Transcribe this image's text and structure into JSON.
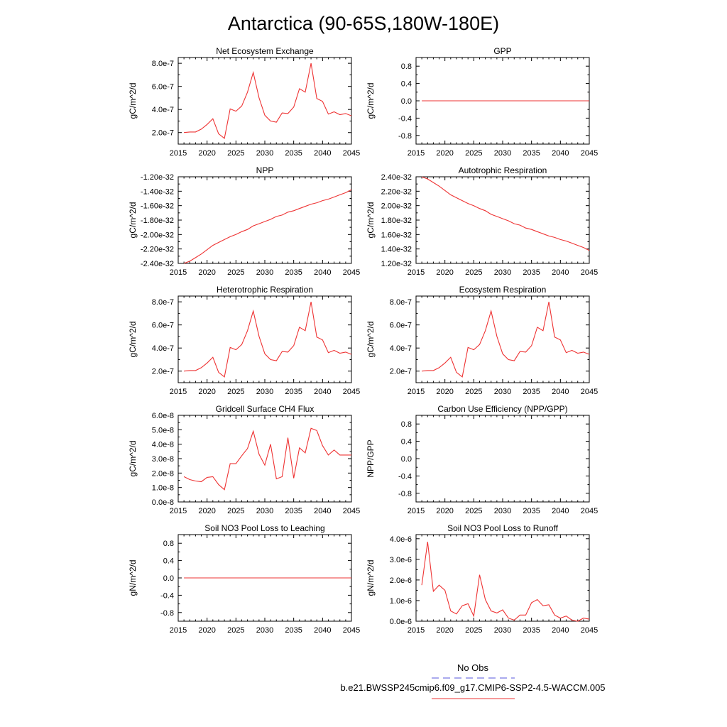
{
  "figure": {
    "title": "Antarctica (90-65S,180W-180E)",
    "legend": {
      "obs_label": "No Obs",
      "obs_color": "#5555dd",
      "model_label": "b.e21.BWSSP245cmip6.f09_g17.CMIP6-SSP2-4.5-WACCM.005",
      "model_color": "#ee3333"
    }
  },
  "chart_data": [
    {
      "type": "line",
      "title": "Net Ecosystem Exchange",
      "ylabel": "gC/m^2/d",
      "xlim": [
        2015,
        2045
      ],
      "ylim": [
        1e-07,
        8.5e-07
      ],
      "xticks": [
        2015,
        2020,
        2025,
        2030,
        2035,
        2040,
        2045
      ],
      "xtick_labels": [
        "2015",
        "2020",
        "2025",
        "2030",
        "2035",
        "2040",
        "2045"
      ],
      "yticks": [
        2e-07,
        4e-07,
        6e-07,
        8e-07
      ],
      "ytick_labels": [
        "2.0e-7",
        "4.0e-7",
        "6.0e-7",
        "8.0e-7"
      ],
      "x": [
        2016,
        2017,
        2018,
        2019,
        2020,
        2021,
        2022,
        2023,
        2024,
        2025,
        2026,
        2027,
        2028,
        2029,
        2030,
        2031,
        2032,
        2033,
        2034,
        2035,
        2036,
        2037,
        2038,
        2039,
        2040,
        2041,
        2042,
        2043,
        2044,
        2045
      ],
      "values": [
        2e-07,
        2.05e-07,
        2.05e-07,
        2.3e-07,
        2.7e-07,
        3.2e-07,
        1.9e-07,
        1.5e-07,
        4.05e-07,
        3.85e-07,
        4.3e-07,
        5.5e-07,
        7.2e-07,
        5e-07,
        3.5e-07,
        3e-07,
        2.9e-07,
        3.7e-07,
        3.65e-07,
        4.2e-07,
        5.8e-07,
        5.5e-07,
        8e-07,
        4.95e-07,
        4.7e-07,
        3.6e-07,
        3.8e-07,
        3.55e-07,
        3.65e-07,
        3.45e-07
      ]
    },
    {
      "type": "line",
      "title": "GPP",
      "ylabel": "gC/m^2/d",
      "xlim": [
        2015,
        2045
      ],
      "ylim": [
        -1.0,
        1.0
      ],
      "xticks": [
        2015,
        2020,
        2025,
        2030,
        2035,
        2040,
        2045
      ],
      "xtick_labels": [
        "2015",
        "2020",
        "2025",
        "2030",
        "2035",
        "2040",
        "2045"
      ],
      "yticks": [
        -0.8,
        -0.4,
        0.0,
        0.4,
        0.8
      ],
      "ytick_labels": [
        "-0.8",
        "-0.4",
        "0.0",
        "0.4",
        "0.8"
      ],
      "x": [
        2016,
        2045
      ],
      "values": [
        0.0,
        0.0
      ]
    },
    {
      "type": "line",
      "title": "NPP",
      "ylabel": "gC/m^2/d",
      "xlim": [
        2015,
        2045
      ],
      "ylim": [
        -2.4e-32,
        -1.2e-32
      ],
      "xticks": [
        2015,
        2020,
        2025,
        2030,
        2035,
        2040,
        2045
      ],
      "xtick_labels": [
        "2015",
        "2020",
        "2025",
        "2030",
        "2035",
        "2040",
        "2045"
      ],
      "yticks": [
        -2.4e-32,
        -2.2e-32,
        -2e-32,
        -1.8e-32,
        -1.6e-32,
        -1.4e-32,
        -1.2e-32
      ],
      "ytick_labels": [
        "-2.40e-32",
        "-2.20e-32",
        "-2.00e-32",
        "-1.80e-32",
        "-1.60e-32",
        "-1.40e-32",
        "-1.20e-32"
      ],
      "x": [
        2016,
        2017,
        2018,
        2019,
        2020,
        2021,
        2022,
        2023,
        2024,
        2025,
        2026,
        2027,
        2028,
        2029,
        2030,
        2031,
        2032,
        2033,
        2034,
        2035,
        2036,
        2037,
        2038,
        2039,
        2040,
        2041,
        2042,
        2043,
        2044,
        2045
      ],
      "values": [
        -2.4e-32,
        -2.37e-32,
        -2.32e-32,
        -2.27e-32,
        -2.21e-32,
        -2.15e-32,
        -2.11e-32,
        -2.07e-32,
        -2.03e-32,
        -2e-32,
        -1.96e-32,
        -1.93e-32,
        -1.88e-32,
        -1.85e-32,
        -1.82e-32,
        -1.79e-32,
        -1.75e-32,
        -1.73e-32,
        -1.69e-32,
        -1.67e-32,
        -1.64e-32,
        -1.61e-32,
        -1.58e-32,
        -1.56e-32,
        -1.53e-32,
        -1.51e-32,
        -1.48e-32,
        -1.45e-32,
        -1.42e-32,
        -1.38e-32
      ]
    },
    {
      "type": "line",
      "title": "Autotrophic Respiration",
      "ylabel": "gC/m^2/d",
      "xlim": [
        2015,
        2045
      ],
      "ylim": [
        1.2e-32,
        2.4e-32
      ],
      "xticks": [
        2015,
        2020,
        2025,
        2030,
        2035,
        2040,
        2045
      ],
      "xtick_labels": [
        "2015",
        "2020",
        "2025",
        "2030",
        "2035",
        "2040",
        "2045"
      ],
      "yticks": [
        1.2e-32,
        1.4e-32,
        1.6e-32,
        1.8e-32,
        2e-32,
        2.2e-32,
        2.4e-32
      ],
      "ytick_labels": [
        "1.20e-32",
        "1.40e-32",
        "1.60e-32",
        "1.80e-32",
        "2.00e-32",
        "2.20e-32",
        "2.40e-32"
      ],
      "x": [
        2016,
        2017,
        2018,
        2019,
        2020,
        2021,
        2022,
        2023,
        2024,
        2025,
        2026,
        2027,
        2028,
        2029,
        2030,
        2031,
        2032,
        2033,
        2034,
        2035,
        2036,
        2037,
        2038,
        2039,
        2040,
        2041,
        2042,
        2043,
        2044,
        2045
      ],
      "values": [
        2.4e-32,
        2.37e-32,
        2.32e-32,
        2.27e-32,
        2.21e-32,
        2.15e-32,
        2.11e-32,
        2.07e-32,
        2.03e-32,
        2e-32,
        1.96e-32,
        1.93e-32,
        1.88e-32,
        1.85e-32,
        1.82e-32,
        1.79e-32,
        1.75e-32,
        1.73e-32,
        1.69e-32,
        1.67e-32,
        1.64e-32,
        1.61e-32,
        1.58e-32,
        1.56e-32,
        1.53e-32,
        1.51e-32,
        1.48e-32,
        1.45e-32,
        1.42e-32,
        1.38e-32
      ]
    },
    {
      "type": "line",
      "title": "Heterotrophic Respiration",
      "ylabel": "gC/m^2/d",
      "xlim": [
        2015,
        2045
      ],
      "ylim": [
        1e-07,
        8.5e-07
      ],
      "xticks": [
        2015,
        2020,
        2025,
        2030,
        2035,
        2040,
        2045
      ],
      "xtick_labels": [
        "2015",
        "2020",
        "2025",
        "2030",
        "2035",
        "2040",
        "2045"
      ],
      "yticks": [
        2e-07,
        4e-07,
        6e-07,
        8e-07
      ],
      "ytick_labels": [
        "2.0e-7",
        "4.0e-7",
        "6.0e-7",
        "8.0e-7"
      ],
      "x": [
        2016,
        2017,
        2018,
        2019,
        2020,
        2021,
        2022,
        2023,
        2024,
        2025,
        2026,
        2027,
        2028,
        2029,
        2030,
        2031,
        2032,
        2033,
        2034,
        2035,
        2036,
        2037,
        2038,
        2039,
        2040,
        2041,
        2042,
        2043,
        2044,
        2045
      ],
      "values": [
        2e-07,
        2.05e-07,
        2.05e-07,
        2.3e-07,
        2.7e-07,
        3.2e-07,
        1.9e-07,
        1.5e-07,
        4.05e-07,
        3.85e-07,
        4.3e-07,
        5.5e-07,
        7.2e-07,
        5e-07,
        3.5e-07,
        3e-07,
        2.9e-07,
        3.7e-07,
        3.65e-07,
        4.2e-07,
        5.8e-07,
        5.5e-07,
        8e-07,
        4.95e-07,
        4.7e-07,
        3.6e-07,
        3.8e-07,
        3.55e-07,
        3.65e-07,
        3.45e-07
      ]
    },
    {
      "type": "line",
      "title": "Ecosystem Respiration",
      "ylabel": "gC/m^2/d",
      "xlim": [
        2015,
        2045
      ],
      "ylim": [
        1e-07,
        8.5e-07
      ],
      "xticks": [
        2015,
        2020,
        2025,
        2030,
        2035,
        2040,
        2045
      ],
      "xtick_labels": [
        "2015",
        "2020",
        "2025",
        "2030",
        "2035",
        "2040",
        "2045"
      ],
      "yticks": [
        2e-07,
        4e-07,
        6e-07,
        8e-07
      ],
      "ytick_labels": [
        "2.0e-7",
        "4.0e-7",
        "6.0e-7",
        "8.0e-7"
      ],
      "x": [
        2016,
        2017,
        2018,
        2019,
        2020,
        2021,
        2022,
        2023,
        2024,
        2025,
        2026,
        2027,
        2028,
        2029,
        2030,
        2031,
        2032,
        2033,
        2034,
        2035,
        2036,
        2037,
        2038,
        2039,
        2040,
        2041,
        2042,
        2043,
        2044,
        2045
      ],
      "values": [
        2e-07,
        2.05e-07,
        2.05e-07,
        2.3e-07,
        2.7e-07,
        3.2e-07,
        1.9e-07,
        1.5e-07,
        4.05e-07,
        3.85e-07,
        4.3e-07,
        5.5e-07,
        7.2e-07,
        5e-07,
        3.5e-07,
        3e-07,
        2.9e-07,
        3.7e-07,
        3.65e-07,
        4.2e-07,
        5.8e-07,
        5.5e-07,
        8e-07,
        4.95e-07,
        4.7e-07,
        3.6e-07,
        3.8e-07,
        3.55e-07,
        3.65e-07,
        3.45e-07
      ]
    },
    {
      "type": "line",
      "title": "Gridcell Surface CH4 Flux",
      "ylabel": "gC/m^2/d",
      "xlim": [
        2015,
        2045
      ],
      "ylim": [
        0.0,
        6e-08
      ],
      "xticks": [
        2015,
        2020,
        2025,
        2030,
        2035,
        2040,
        2045
      ],
      "xtick_labels": [
        "2015",
        "2020",
        "2025",
        "2030",
        "2035",
        "2040",
        "2045"
      ],
      "yticks": [
        0.0,
        1e-08,
        2e-08,
        3e-08,
        4e-08,
        5e-08,
        6e-08
      ],
      "ytick_labels": [
        "0.0e-8",
        "1.0e-8",
        "2.0e-8",
        "3.0e-8",
        "4.0e-8",
        "5.0e-8",
        "6.0e-8"
      ],
      "x": [
        2016,
        2017,
        2018,
        2019,
        2020,
        2021,
        2022,
        2023,
        2024,
        2025,
        2026,
        2027,
        2028,
        2029,
        2030,
        2031,
        2032,
        2033,
        2034,
        2035,
        2036,
        2037,
        2038,
        2039,
        2040,
        2041,
        2042,
        2043,
        2044,
        2045
      ],
      "values": [
        1.75e-08,
        1.55e-08,
        1.45e-08,
        1.4e-08,
        1.7e-08,
        1.75e-08,
        1.2e-08,
        8.5e-09,
        2.65e-08,
        2.65e-08,
        3.2e-08,
        3.7e-08,
        4.9e-08,
        3.3e-08,
        2.55e-08,
        4e-08,
        1.6e-08,
        1.75e-08,
        4.45e-08,
        1.65e-08,
        3.75e-08,
        3.4e-08,
        5.1e-08,
        4.95e-08,
        3.9e-08,
        3.25e-08,
        3.6e-08,
        3.25e-08,
        3.25e-08,
        3.25e-08
      ]
    },
    {
      "type": "line",
      "title": "Carbon Use Efficiency (NPP/GPP)",
      "ylabel": "NPP/GPP",
      "xlim": [
        2015,
        2045
      ],
      "ylim": [
        -1.0,
        1.0
      ],
      "xticks": [
        2015,
        2020,
        2025,
        2030,
        2035,
        2040,
        2045
      ],
      "xtick_labels": [
        "2015",
        "2020",
        "2025",
        "2030",
        "2035",
        "2040",
        "2045"
      ],
      "yticks": [
        -0.8,
        -0.4,
        0.0,
        0.4,
        0.8
      ],
      "ytick_labels": [
        "-0.8",
        "-0.4",
        "0.0",
        "0.4",
        "0.8"
      ],
      "x": [],
      "values": []
    },
    {
      "type": "line",
      "title": "Soil NO3 Pool Loss to Leaching",
      "ylabel": "gN/m^2/d",
      "xlim": [
        2015,
        2045
      ],
      "ylim": [
        -1.0,
        1.0
      ],
      "xticks": [
        2015,
        2020,
        2025,
        2030,
        2035,
        2040,
        2045
      ],
      "xtick_labels": [
        "2015",
        "2020",
        "2025",
        "2030",
        "2035",
        "2040",
        "2045"
      ],
      "yticks": [
        -0.8,
        -0.4,
        0.0,
        0.4,
        0.8
      ],
      "ytick_labels": [
        "-0.8",
        "-0.4",
        "0.0",
        "0.4",
        "0.8"
      ],
      "x": [
        2016,
        2045
      ],
      "values": [
        0.0,
        0.0
      ]
    },
    {
      "type": "line",
      "title": "Soil NO3 Pool Loss to Runoff",
      "ylabel": "gN/m^2/d",
      "xlim": [
        2015,
        2045
      ],
      "ylim": [
        0.0,
        4.2e-06
      ],
      "xticks": [
        2015,
        2020,
        2025,
        2030,
        2035,
        2040,
        2045
      ],
      "xtick_labels": [
        "2015",
        "2020",
        "2025",
        "2030",
        "2035",
        "2040",
        "2045"
      ],
      "yticks": [
        0.0,
        1e-06,
        2e-06,
        3e-06,
        4e-06
      ],
      "ytick_labels": [
        "0.0e-6",
        "1.0e-6",
        "2.0e-6",
        "3.0e-6",
        "4.0e-6"
      ],
      "x": [
        2016,
        2017,
        2018,
        2019,
        2020,
        2021,
        2022,
        2023,
        2024,
        2025,
        2026,
        2027,
        2028,
        2029,
        2030,
        2031,
        2032,
        2033,
        2034,
        2035,
        2036,
        2037,
        2038,
        2039,
        2040,
        2041,
        2042,
        2043,
        2044,
        2045
      ],
      "values": [
        1.75e-06,
        3.85e-06,
        1.45e-06,
        1.75e-06,
        1.5e-06,
        5e-07,
        3.5e-07,
        7.5e-07,
        8.5e-07,
        2.5e-07,
        2.25e-06,
        1.05e-06,
        5e-07,
        4e-07,
        5.5e-07,
        1.5e-07,
        5e-08,
        3e-07,
        3e-07,
        9e-07,
        1.05e-06,
        7.5e-07,
        8e-07,
        3e-07,
        1.5e-07,
        2.5e-07,
        5e-08,
        0.0,
        1.5e-07,
        1e-07
      ]
    }
  ]
}
